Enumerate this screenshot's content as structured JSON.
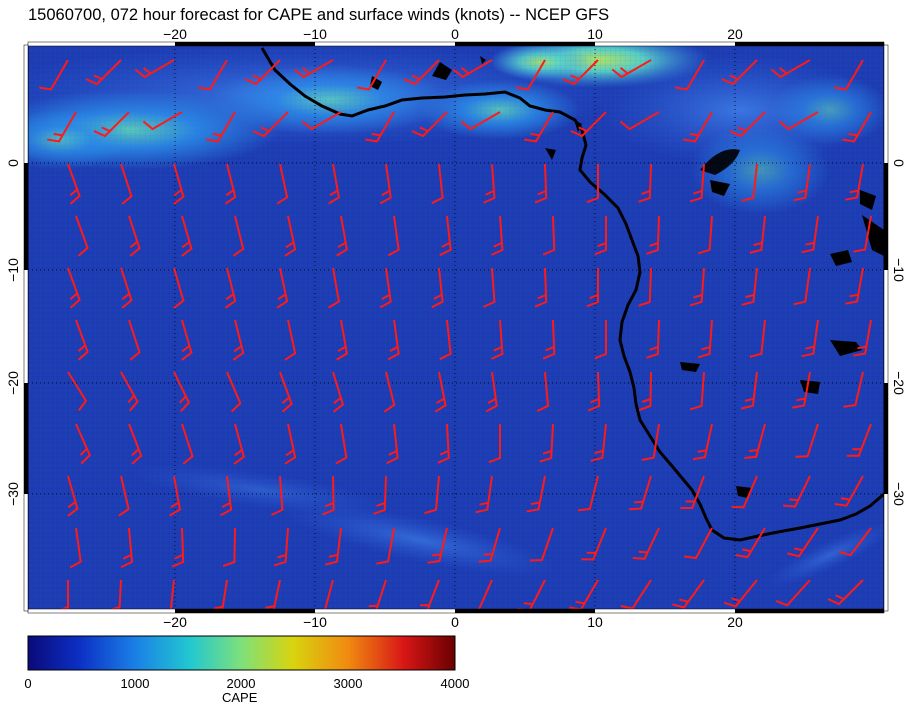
{
  "title": "15060700, 072 hour forecast for CAPE and surface winds (knots) -- NCEP GFS",
  "map": {
    "lon_range": [
      -30,
      30
    ],
    "lat_range": [
      -40,
      10
    ],
    "lon_ticks": [
      "−20",
      "−10",
      "0",
      "10",
      "20"
    ],
    "lon_tick_values": [
      -20,
      -10,
      0,
      10,
      20
    ],
    "lat_ticks": [
      "0",
      "−10",
      "−20",
      "−30"
    ],
    "lat_tick_values": [
      0,
      -10,
      -20,
      -30
    ],
    "gridlines": "dotted",
    "field": "CAPE",
    "wind_barb_color": "#ff1a1a",
    "coastline_color": "#000000"
  },
  "colorbar": {
    "title": "CAPE",
    "ticks": [
      "0",
      "1000",
      "2000",
      "3000",
      "4000"
    ],
    "range": [
      0,
      4000
    ],
    "colors": [
      "#0a0a7a",
      "#0c2fc4",
      "#1a7fe6",
      "#22c8d0",
      "#7ee07a",
      "#d8d40e",
      "#f08a10",
      "#d81616",
      "#6a0000"
    ]
  }
}
